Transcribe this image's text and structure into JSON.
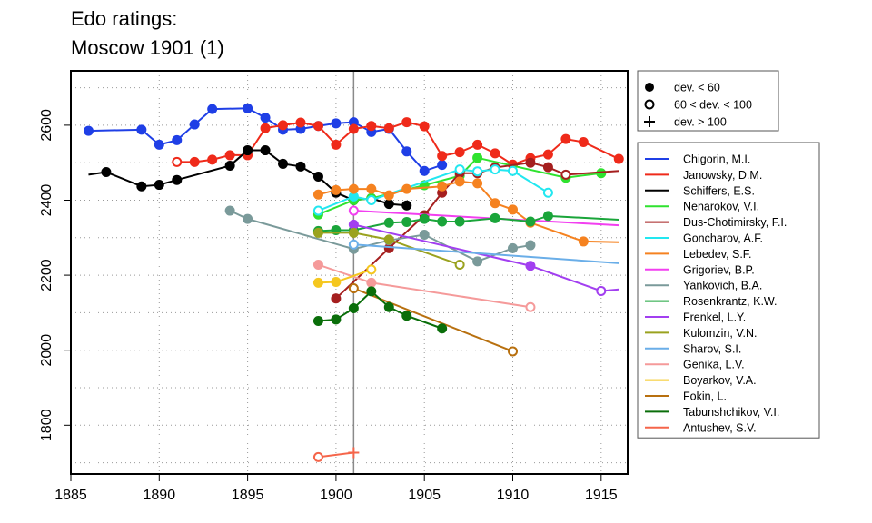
{
  "chart_data": {
    "type": "line",
    "title_lines": [
      "Edo ratings:",
      "Moscow 1901 (1)"
    ],
    "xlim": [
      1885,
      1916.5
    ],
    "ylim": [
      1670,
      2745
    ],
    "x_ticks": [
      1885,
      1890,
      1895,
      1900,
      1905,
      1910,
      1915
    ],
    "y_ticks": [
      1800,
      2000,
      2200,
      2400,
      2600
    ],
    "grid": "dotted",
    "event_year": 1901,
    "marker_legend": [
      {
        "symbol": "filled",
        "label": "dev. < 60"
      },
      {
        "symbol": "open",
        "label": "60 < dev. < 100"
      },
      {
        "symbol": "plus",
        "label": "dev. > 100"
      }
    ],
    "series": [
      {
        "name": "Chigorin, M.I.",
        "color": "#1f3fe6",
        "points": [
          [
            1886,
            2585,
            "f"
          ],
          [
            1889,
            2588,
            "f"
          ],
          [
            1890,
            2548,
            "f"
          ],
          [
            1891,
            2560,
            "f"
          ],
          [
            1892,
            2602,
            "f"
          ],
          [
            1893,
            2643,
            "f"
          ],
          [
            1895,
            2645,
            "f"
          ],
          [
            1896,
            2620,
            "f"
          ],
          [
            1897,
            2588,
            "f"
          ],
          [
            1898,
            2590,
            "f"
          ],
          [
            1899,
            2598,
            "f"
          ],
          [
            1900,
            2605,
            "f"
          ],
          [
            1901,
            2608,
            "f"
          ],
          [
            1902,
            2582,
            "f"
          ],
          [
            1903,
            2590,
            "f"
          ],
          [
            1904,
            2530,
            "f"
          ],
          [
            1905,
            2478,
            "f"
          ],
          [
            1906,
            2494,
            "f"
          ]
        ]
      },
      {
        "name": "Janowsky, D.M.",
        "color": "#ef2a1a",
        "points": [
          [
            1891,
            2502,
            "o"
          ],
          [
            1892,
            2502,
            "f"
          ],
          [
            1893,
            2508,
            "f"
          ],
          [
            1894,
            2520,
            "f"
          ],
          [
            1895,
            2520,
            "f"
          ],
          [
            1896,
            2592,
            "f"
          ],
          [
            1897,
            2600,
            "f"
          ],
          [
            1898,
            2607,
            "f"
          ],
          [
            1899,
            2598,
            "f"
          ],
          [
            1900,
            2548,
            "f"
          ],
          [
            1901,
            2590,
            "f"
          ],
          [
            1902,
            2598,
            "f"
          ],
          [
            1903,
            2592,
            "f"
          ],
          [
            1904,
            2608,
            "f"
          ],
          [
            1905,
            2597,
            "f"
          ],
          [
            1906,
            2518,
            "f"
          ],
          [
            1907,
            2528,
            "f"
          ],
          [
            1908,
            2548,
            "f"
          ],
          [
            1909,
            2525,
            "f"
          ],
          [
            1910,
            2495,
            "f"
          ],
          [
            1911,
            2512,
            "f"
          ],
          [
            1912,
            2522,
            "f"
          ],
          [
            1913,
            2563,
            "f"
          ],
          [
            1914,
            2555,
            "f"
          ],
          [
            1916,
            2510,
            "f"
          ]
        ]
      },
      {
        "name": "Schiffers, E.S.",
        "color": "#000000",
        "points": [
          [
            1886,
            2468,
            "n"
          ],
          [
            1887,
            2475,
            "f"
          ],
          [
            1889,
            2437,
            "f"
          ],
          [
            1890,
            2441,
            "f"
          ],
          [
            1891,
            2454,
            "f"
          ],
          [
            1894,
            2492,
            "f"
          ],
          [
            1895,
            2533,
            "f"
          ],
          [
            1896,
            2533,
            "f"
          ],
          [
            1897,
            2497,
            "f"
          ],
          [
            1898,
            2490,
            "f"
          ],
          [
            1899,
            2463,
            "f"
          ],
          [
            1900,
            2420,
            "f"
          ],
          [
            1901,
            2400,
            "f"
          ],
          [
            1902,
            2405,
            "f"
          ],
          [
            1903,
            2390,
            "f"
          ],
          [
            1904,
            2386,
            "f"
          ]
        ]
      },
      {
        "name": "Nenarokov, V.I.",
        "color": "#2fe22f",
        "points": [
          [
            1899,
            2362,
            "f"
          ],
          [
            1901,
            2400,
            "f"
          ],
          [
            1902,
            2405,
            "f"
          ],
          [
            1905,
            2440,
            "f"
          ],
          [
            1907,
            2465,
            "f"
          ],
          [
            1908,
            2513,
            "f"
          ],
          [
            1913,
            2460,
            "f"
          ],
          [
            1915,
            2472,
            "f"
          ]
        ]
      },
      {
        "name": "Dus-Chotimirsky, F.I.",
        "color": "#a51f1f",
        "points": [
          [
            1900,
            2138,
            "f"
          ],
          [
            1903,
            2272,
            "f"
          ],
          [
            1905,
            2360,
            "f"
          ],
          [
            1906,
            2420,
            "f"
          ],
          [
            1907,
            2472,
            "f"
          ],
          [
            1908,
            2472,
            "f"
          ],
          [
            1909,
            2487,
            "f"
          ],
          [
            1911,
            2500,
            "f"
          ],
          [
            1912,
            2488,
            "f"
          ],
          [
            1913,
            2468,
            "o"
          ],
          [
            1916,
            2478,
            "n"
          ]
        ]
      },
      {
        "name": "Goncharov, A.F.",
        "color": "#22e7f0",
        "points": [
          [
            1899,
            2372,
            "o"
          ],
          [
            1901,
            2410,
            "f"
          ],
          [
            1902,
            2400,
            "o"
          ],
          [
            1907,
            2482,
            "o"
          ],
          [
            1908,
            2477,
            "o"
          ],
          [
            1909,
            2482,
            "o"
          ],
          [
            1910,
            2478,
            "o"
          ],
          [
            1912,
            2420,
            "o"
          ]
        ]
      },
      {
        "name": "Lebedev, S.F.",
        "color": "#f58220",
        "points": [
          [
            1899,
            2415,
            "f"
          ],
          [
            1900,
            2427,
            "f"
          ],
          [
            1901,
            2430,
            "f"
          ],
          [
            1902,
            2430,
            "f"
          ],
          [
            1903,
            2413,
            "f"
          ],
          [
            1904,
            2430,
            "f"
          ],
          [
            1906,
            2437,
            "f"
          ],
          [
            1907,
            2450,
            "f"
          ],
          [
            1908,
            2445,
            "f"
          ],
          [
            1909,
            2392,
            "f"
          ],
          [
            1910,
            2375,
            "f"
          ],
          [
            1911,
            2340,
            "f"
          ],
          [
            1914,
            2290,
            "f"
          ],
          [
            1916,
            2288,
            "n"
          ]
        ]
      },
      {
        "name": "Grigoriev, B.P.",
        "color": "#f23ff0",
        "points": [
          [
            1901,
            2372,
            "o"
          ],
          [
            1916,
            2333,
            "n"
          ]
        ]
      },
      {
        "name": "Yankovich, B.A.",
        "color": "#7a9a9a",
        "points": [
          [
            1894,
            2372,
            "f"
          ],
          [
            1895,
            2350,
            "f"
          ],
          [
            1901,
            2270,
            "f"
          ],
          [
            1903,
            2293,
            "f"
          ],
          [
            1905,
            2308,
            "f"
          ],
          [
            1908,
            2237,
            "f"
          ],
          [
            1910,
            2272,
            "f"
          ],
          [
            1911,
            2280,
            "f"
          ]
        ]
      },
      {
        "name": "Rosenkrantz, K.W.",
        "color": "#1aa53a",
        "points": [
          [
            1899,
            2318,
            "f"
          ],
          [
            1900,
            2320,
            "f"
          ],
          [
            1901,
            2320,
            "f"
          ],
          [
            1903,
            2340,
            "f"
          ],
          [
            1904,
            2342,
            "f"
          ],
          [
            1905,
            2350,
            "f"
          ],
          [
            1906,
            2343,
            "f"
          ],
          [
            1907,
            2343,
            "f"
          ],
          [
            1909,
            2352,
            "f"
          ],
          [
            1911,
            2343,
            "f"
          ],
          [
            1912,
            2358,
            "f"
          ],
          [
            1916,
            2348,
            "n"
          ]
        ]
      },
      {
        "name": "Frenkel, L.Y.",
        "color": "#a23ff0",
        "points": [
          [
            1901,
            2335,
            "f"
          ],
          [
            1911,
            2225,
            "f"
          ],
          [
            1915,
            2158,
            "o"
          ],
          [
            1916,
            2162,
            "n"
          ]
        ]
      },
      {
        "name": "Kulomzin, V.N.",
        "color": "#9aa21f",
        "points": [
          [
            1899,
            2313,
            "f"
          ],
          [
            1901,
            2313,
            "f"
          ],
          [
            1903,
            2295,
            "f"
          ],
          [
            1907,
            2228,
            "o"
          ]
        ]
      },
      {
        "name": "Sharov, S.I.",
        "color": "#6aaee8",
        "points": [
          [
            1901,
            2282,
            "o"
          ],
          [
            1916,
            2232,
            "n"
          ]
        ]
      },
      {
        "name": "Genika, L.V.",
        "color": "#f59a9a",
        "points": [
          [
            1899,
            2228,
            "f"
          ],
          [
            1902,
            2180,
            "f"
          ],
          [
            1911,
            2115,
            "o"
          ]
        ]
      },
      {
        "name": "Boyarkov, V.A.",
        "color": "#f5c71f",
        "points": [
          [
            1899,
            2180,
            "f"
          ],
          [
            1900,
            2182,
            "f"
          ],
          [
            1902,
            2215,
            "o"
          ]
        ]
      },
      {
        "name": "Fokin, L.",
        "color": "#b8700f",
        "points": [
          [
            1901,
            2165,
            "o"
          ],
          [
            1910,
            1997,
            "o"
          ]
        ]
      },
      {
        "name": "Tabunshchikov, V.I.",
        "color": "#0a6e0a",
        "points": [
          [
            1899,
            2078,
            "f"
          ],
          [
            1900,
            2082,
            "f"
          ],
          [
            1901,
            2112,
            "f"
          ],
          [
            1902,
            2157,
            "f"
          ],
          [
            1903,
            2115,
            "f"
          ],
          [
            1904,
            2092,
            "f"
          ],
          [
            1906,
            2058,
            "f"
          ]
        ]
      },
      {
        "name": "Antushev, S.V.",
        "color": "#f5654a",
        "points": [
          [
            1899,
            1715,
            "o"
          ],
          [
            1901,
            1727,
            "p"
          ]
        ]
      }
    ]
  }
}
